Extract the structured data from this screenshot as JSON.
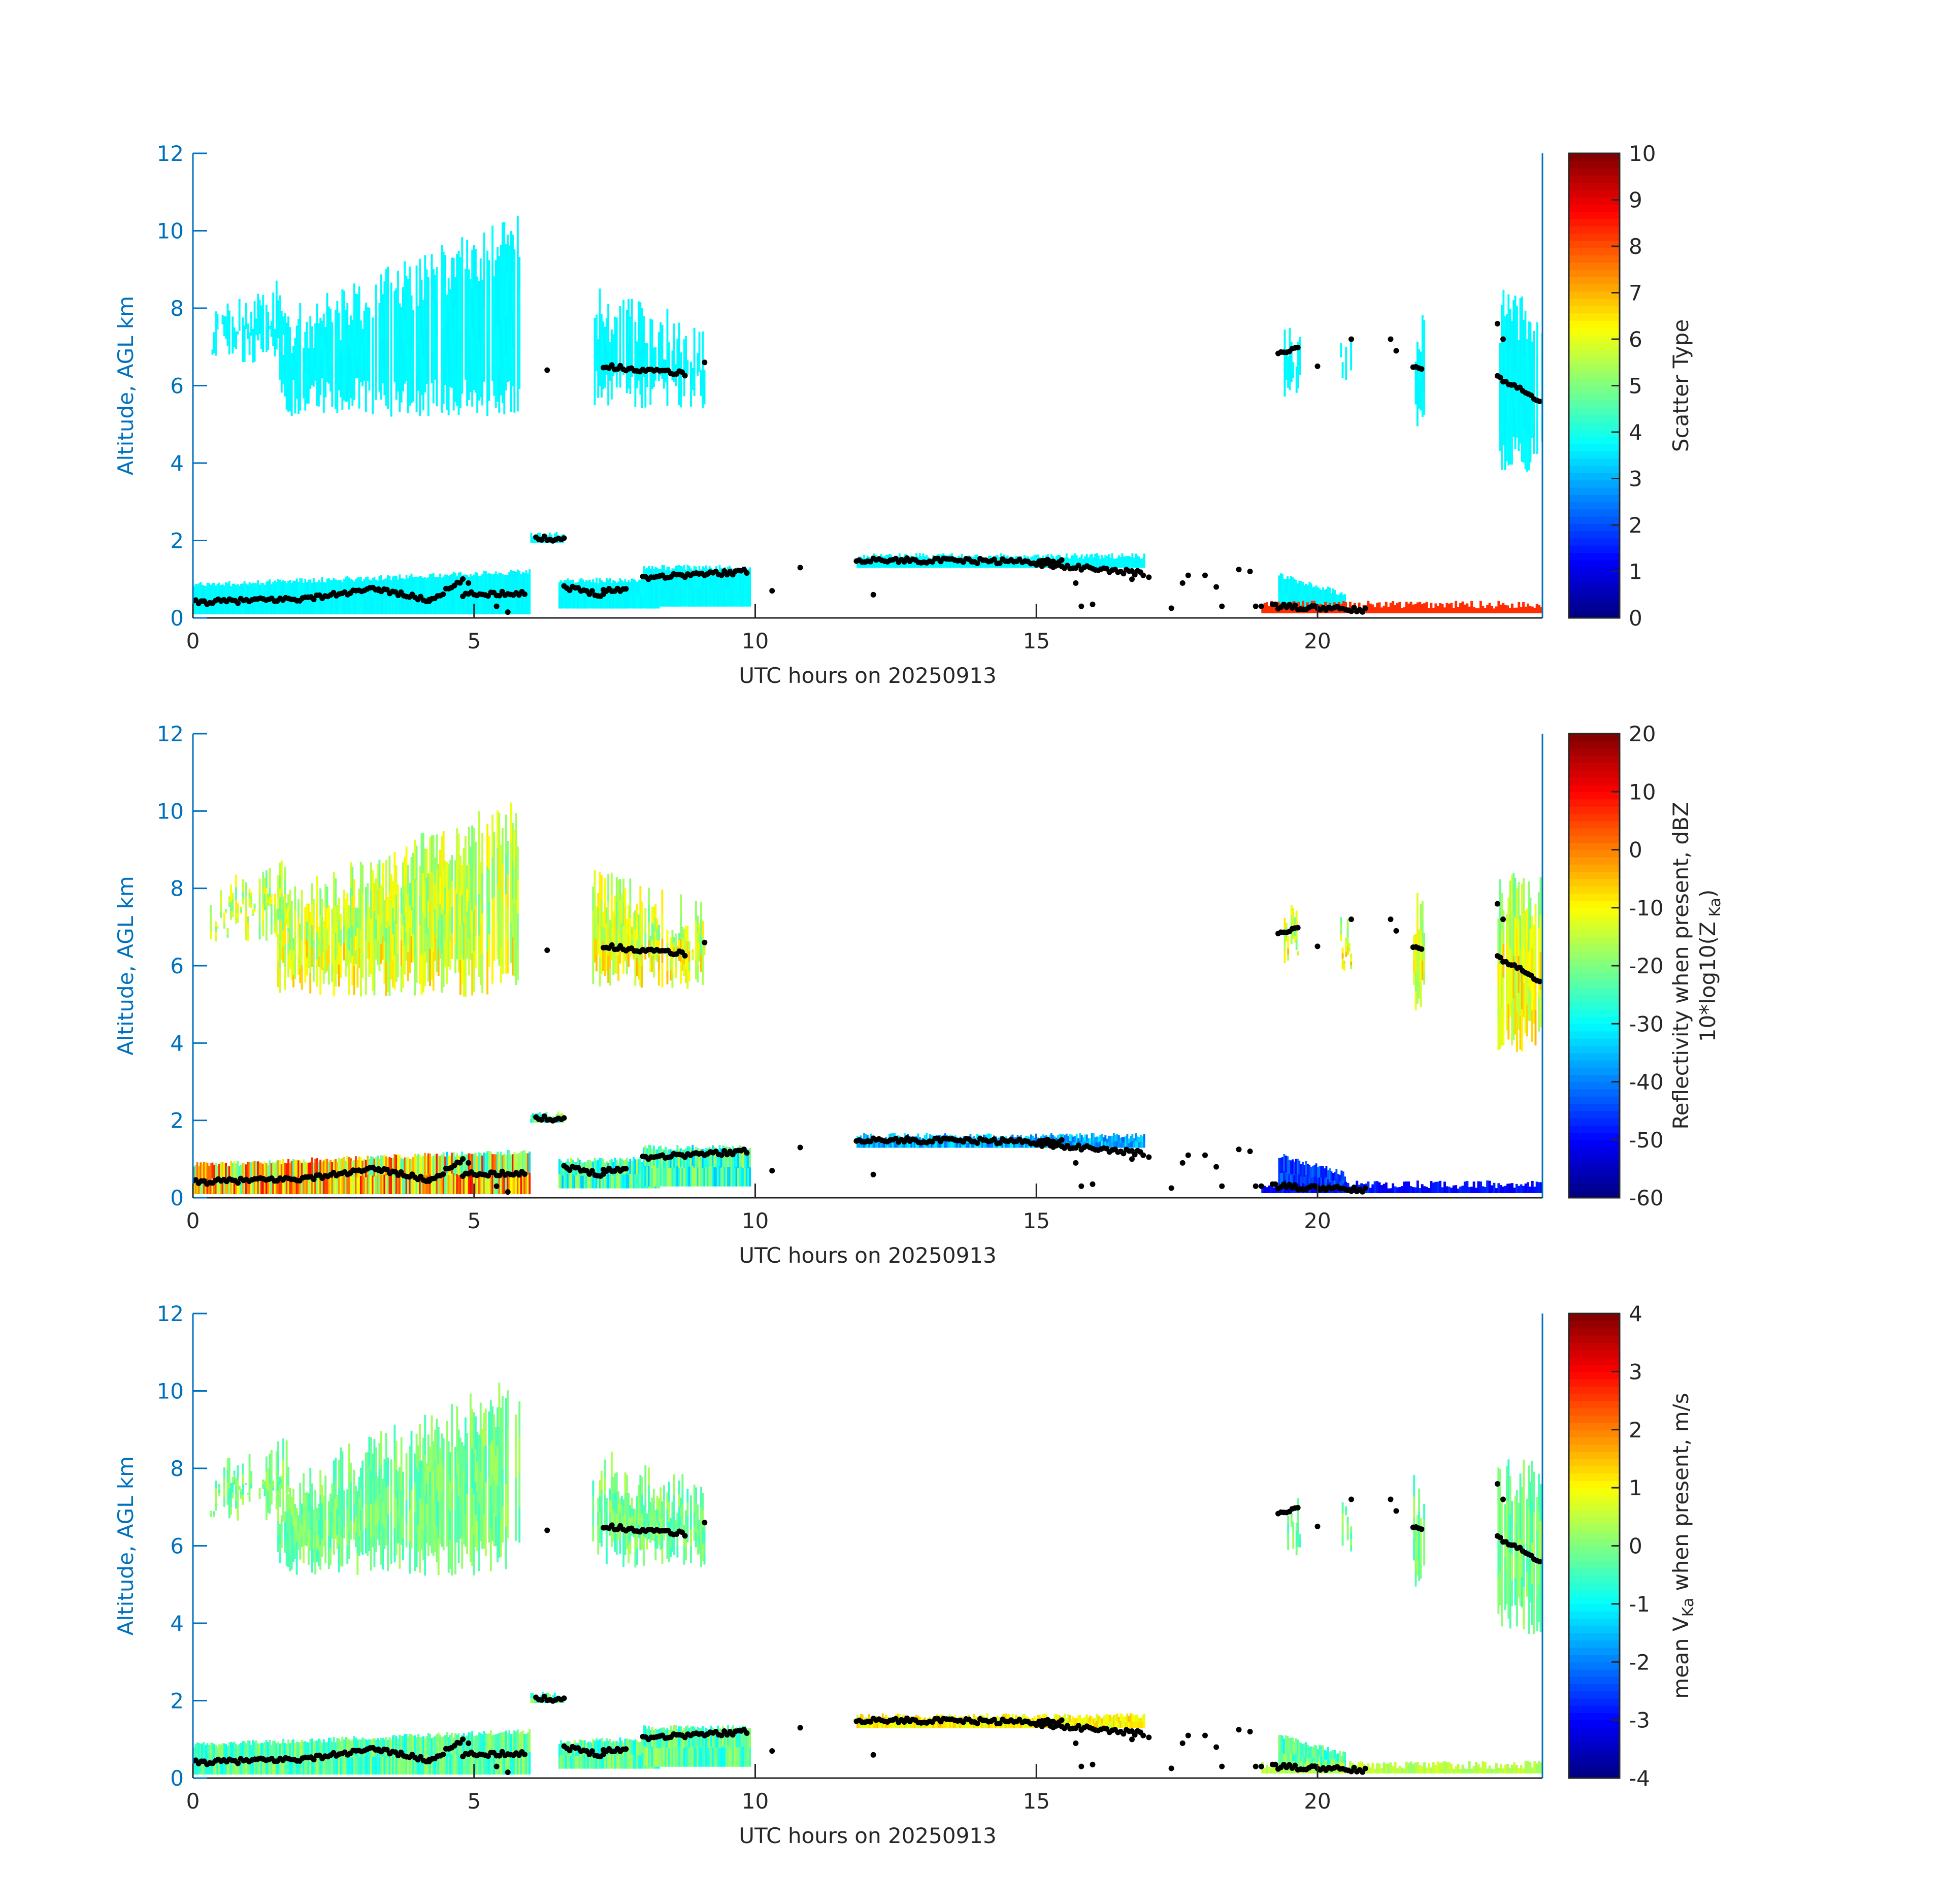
{
  "colors": {
    "axis_left": "#0072BD",
    "axis_dark": "#262626",
    "cloud_base_dots": "#000000",
    "scatter_cloud": "#1EF5DC",
    "scatter_clutter": "#FF4010"
  },
  "colormap": "jet",
  "chart_data": [
    {
      "type": "heatmap",
      "panel": "scatter-type",
      "xlabel": "UTC hours on 20250913",
      "ylabel": "Altitude, AGL km",
      "xlim": [
        0,
        24
      ],
      "ylim": [
        0,
        12
      ],
      "x_ticks": [
        "0",
        "5",
        "10",
        "15",
        "20"
      ],
      "y_ticks": [
        "0",
        "2",
        "4",
        "6",
        "8",
        "10",
        "12"
      ],
      "colorbar": {
        "label": "Scatter Type",
        "clim": [
          0,
          10
        ],
        "ticks": [
          "0",
          "1",
          "2",
          "3",
          "4",
          "5",
          "6",
          "7",
          "8",
          "9",
          "10"
        ]
      },
      "fill_value_range": [
        3.5,
        3.9
      ],
      "clutter_value": 8.3
    },
    {
      "type": "heatmap",
      "panel": "reflectivity",
      "xlabel": "UTC hours on 20250913",
      "ylabel": "Altitude, AGL km",
      "xlim": [
        0,
        24
      ],
      "ylim": [
        0,
        12
      ],
      "x_ticks": [
        "0",
        "5",
        "10",
        "15",
        "20"
      ],
      "y_ticks": [
        "0",
        "2",
        "4",
        "6",
        "8",
        "10",
        "12"
      ],
      "colorbar": {
        "label_line1": "Reflectivity when present, dBZ",
        "label_line2": "10*log10(Z",
        "label_sub": "Ka",
        "label_close": ")",
        "clim": [
          -60,
          20
        ],
        "ticks": [
          "-60",
          "-50",
          "-40",
          "-30",
          "-20",
          "-10",
          "0",
          "10",
          "20"
        ]
      }
    },
    {
      "type": "heatmap",
      "panel": "mean-velocity",
      "xlabel": "UTC hours on 20250913",
      "ylabel": "Altitude, AGL km",
      "xlim": [
        0,
        24
      ],
      "ylim": [
        0,
        12
      ],
      "x_ticks": [
        "0",
        "5",
        "10",
        "15",
        "20"
      ],
      "y_ticks": [
        "0",
        "2",
        "4",
        "6",
        "8",
        "10",
        "12"
      ],
      "colorbar": {
        "label_pre": "mean V",
        "label_sub": "Ka",
        "label_post": " when present, m/s",
        "clim": [
          -4,
          4
        ],
        "ticks": [
          "-4",
          "-3",
          "-2",
          "-1",
          "0",
          "1",
          "2",
          "3",
          "4"
        ]
      }
    }
  ],
  "echo_regions": [
    {
      "t0": 0.0,
      "t1": 6.0,
      "base": 0.1,
      "top_start": 0.85,
      "top_end": 1.2,
      "kind": "low"
    },
    {
      "t0": 6.0,
      "t1": 6.6,
      "base": 1.95,
      "top_start": 2.15,
      "top_end": 2.15,
      "kind": "low"
    },
    {
      "t0": 6.5,
      "t1": 8.3,
      "base": 0.25,
      "top_start": 0.95,
      "top_end": 1.0,
      "kind": "low"
    },
    {
      "t0": 8.0,
      "t1": 9.9,
      "base": 0.3,
      "top_start": 1.3,
      "top_end": 1.3,
      "kind": "low"
    },
    {
      "t0": 11.8,
      "t1": 16.9,
      "base": 1.3,
      "top_start": 1.6,
      "top_end": 1.6,
      "kind": "low"
    },
    {
      "t0": 19.3,
      "t1": 20.5,
      "base": 0.25,
      "top_start": 1.1,
      "top_end": 0.6,
      "kind": "low"
    },
    {
      "t0": 0.3,
      "t1": 1.7,
      "base": 6.6,
      "top_start": 7.4,
      "top_end": 8.2,
      "kind": "high"
    },
    {
      "t0": 1.5,
      "t1": 5.8,
      "base": 5.2,
      "top_start": 7.2,
      "top_end": 9.8,
      "kind": "high"
    },
    {
      "t0": 7.1,
      "t1": 9.1,
      "base": 5.4,
      "top_start": 7.9,
      "top_end": 7.0,
      "kind": "high"
    },
    {
      "t0": 19.4,
      "t1": 19.7,
      "base": 5.7,
      "top_start": 7.0,
      "top_end": 7.0,
      "kind": "high"
    },
    {
      "t0": 20.4,
      "t1": 20.6,
      "base": 5.8,
      "top_start": 6.6,
      "top_end": 6.6,
      "kind": "high"
    },
    {
      "t0": 21.7,
      "t1": 21.9,
      "base": 4.8,
      "top_start": 7.2,
      "top_end": 7.2,
      "kind": "high"
    },
    {
      "t0": 23.2,
      "t1": 24.0,
      "base": 3.7,
      "top_start": 7.8,
      "top_end": 7.6,
      "kind": "high"
    }
  ],
  "clutter_regions": [
    {
      "t0": 19.0,
      "t1": 24.0,
      "base": 0.12,
      "top": 0.45
    }
  ],
  "cloud_base_segments": [
    {
      "t0": 0.0,
      "t1": 2.0,
      "h0": 0.4,
      "h1": 0.5
    },
    {
      "t0": 2.0,
      "t1": 3.3,
      "h0": 0.5,
      "h1": 0.75
    },
    {
      "t0": 3.3,
      "t1": 4.2,
      "h0": 0.75,
      "h1": 0.45
    },
    {
      "t0": 4.2,
      "t1": 4.8,
      "h0": 0.45,
      "h1": 0.95
    },
    {
      "t0": 4.8,
      "t1": 5.9,
      "h0": 0.6,
      "h1": 0.65
    },
    {
      "t0": 6.1,
      "t1": 6.6,
      "h0": 2.05,
      "h1": 2.05
    },
    {
      "t0": 6.6,
      "t1": 7.3,
      "h0": 0.8,
      "h1": 0.6
    },
    {
      "t0": 7.3,
      "t1": 7.7,
      "h0": 0.7,
      "h1": 0.75
    },
    {
      "t0": 8.0,
      "t1": 9.9,
      "h0": 1.05,
      "h1": 1.2
    },
    {
      "t0": 11.8,
      "t1": 15.5,
      "h0": 1.5,
      "h1": 1.45
    },
    {
      "t0": 15.0,
      "t1": 16.9,
      "h0": 1.4,
      "h1": 1.15
    },
    {
      "t0": 19.3,
      "t1": 19.7,
      "h0": 6.85,
      "h1": 7.0
    },
    {
      "t0": 19.2,
      "t1": 20.9,
      "h0": 0.3,
      "h1": 0.2
    },
    {
      "t0": 23.2,
      "t1": 24.0,
      "h0": 6.2,
      "h1": 5.6
    },
    {
      "t0": 7.3,
      "t1": 8.8,
      "h0": 6.5,
      "h1": 6.3
    },
    {
      "t0": 21.7,
      "t1": 21.9,
      "h0": 6.5,
      "h1": 6.4
    }
  ],
  "cloud_base_scatter": [
    [
      10.3,
      0.7
    ],
    [
      10.8,
      1.3
    ],
    [
      12.1,
      0.6
    ],
    [
      15.8,
      0.3
    ],
    [
      16.0,
      0.35
    ],
    [
      17.4,
      0.25
    ],
    [
      17.6,
      0.9
    ],
    [
      17.7,
      1.1
    ],
    [
      18.0,
      1.1
    ],
    [
      18.2,
      0.8
    ],
    [
      18.3,
      0.3
    ],
    [
      18.6,
      1.25
    ],
    [
      18.8,
      1.2
    ],
    [
      20.6,
      7.2
    ],
    [
      20.0,
      6.5
    ],
    [
      21.3,
      7.2
    ],
    [
      21.4,
      6.9
    ],
    [
      23.2,
      7.6
    ],
    [
      23.3,
      7.2
    ],
    [
      6.3,
      6.4
    ],
    [
      9.1,
      6.6
    ],
    [
      5.4,
      0.3
    ],
    [
      5.6,
      0.15
    ],
    [
      4.9,
      0.9
    ],
    [
      16.7,
      1.0
    ],
    [
      16.9,
      1.1
    ],
    [
      17.0,
      1.05
    ],
    [
      15.7,
      0.9
    ],
    [
      18.9,
      0.3
    ],
    [
      19.0,
      0.3
    ]
  ]
}
